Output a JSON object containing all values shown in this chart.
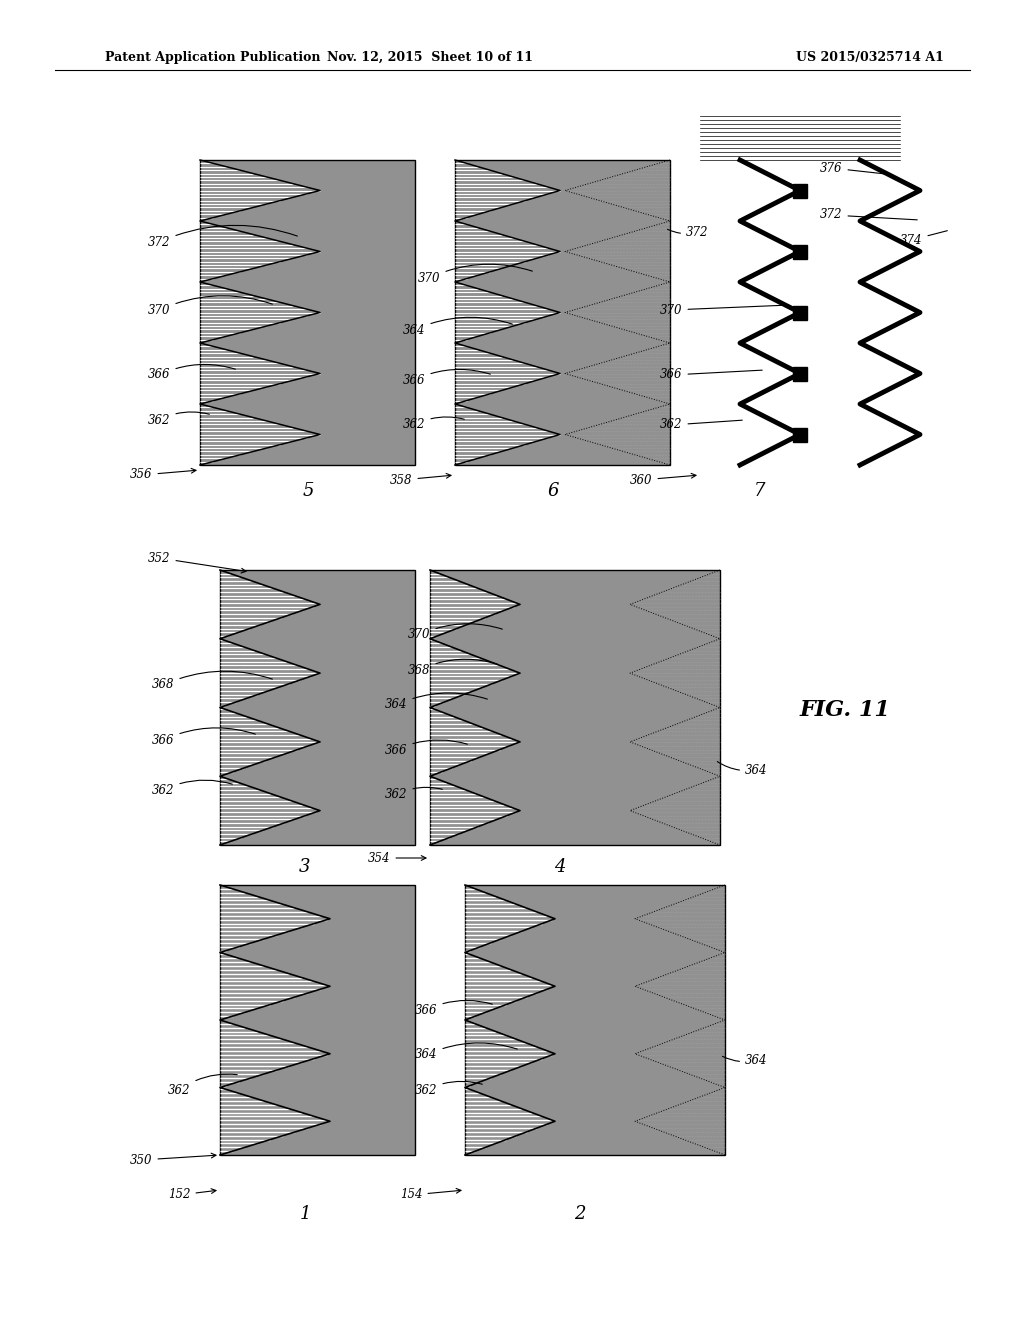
{
  "header_left": "Patent Application Publication",
  "header_center": "Nov. 12, 2015  Sheet 10 of 11",
  "header_right": "US 2015/0325714 A1",
  "fig_label": "FIG. 11",
  "bg_color": "#ffffff"
}
